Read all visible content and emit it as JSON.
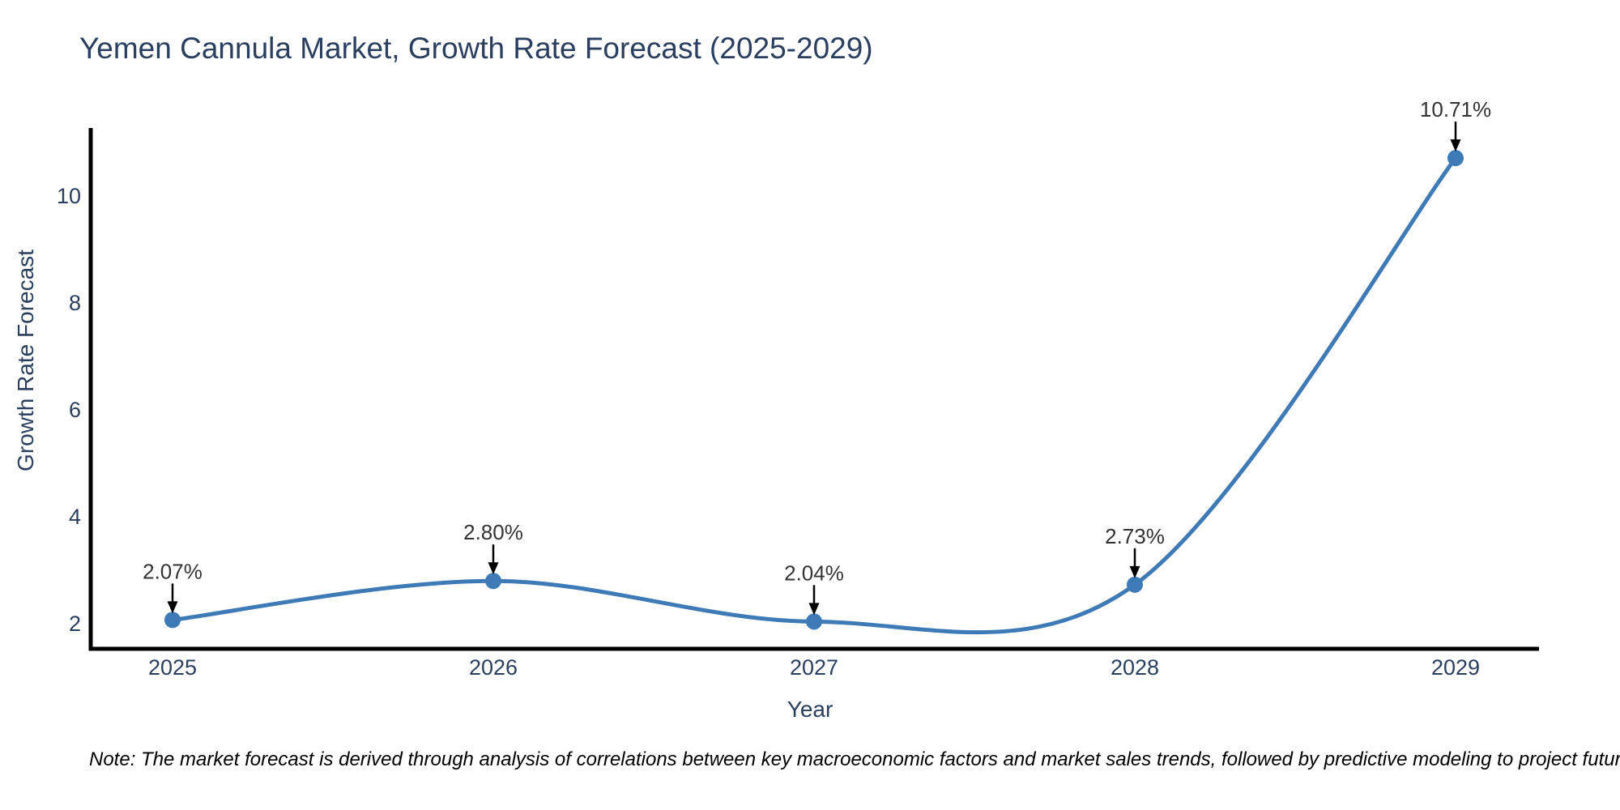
{
  "note": "Note: The market forecast is derived through analysis of correlations between key macroeconomic factors and market sales trends, followed by predictive modeling to project future sales.",
  "chart_data": {
    "type": "line",
    "title": "Yemen Cannula Market, Growth Rate Forecast (2025-2029)",
    "xlabel": "Year",
    "ylabel": "Growth Rate Forecast",
    "categories": [
      "2025",
      "2026",
      "2027",
      "2028",
      "2029"
    ],
    "x": [
      2025,
      2026,
      2027,
      2028,
      2029
    ],
    "series": [
      {
        "name": "Growth Rate Forecast",
        "values": [
          2.07,
          2.8,
          2.04,
          2.73,
          10.71
        ]
      }
    ],
    "point_labels": [
      "2.07%",
      "2.80%",
      "2.04%",
      "2.73%",
      "10.71%"
    ],
    "yticks": [
      2,
      4,
      6,
      8,
      10
    ],
    "ylim": [
      1.5,
      11.3
    ],
    "xlim": [
      2024.74,
      2029.26
    ],
    "grid": false,
    "legend_position": "none",
    "line_shape": "spline",
    "marker": "circle",
    "annotation_arrow": "down",
    "colors": {
      "line": "#3d7ab6",
      "marker": "#3d7ab6",
      "axis_line": "#000000",
      "axis_text": "#2a3f5f",
      "annotation_text": "#333333",
      "note_text": "#000000",
      "background": "#ffffff"
    }
  }
}
